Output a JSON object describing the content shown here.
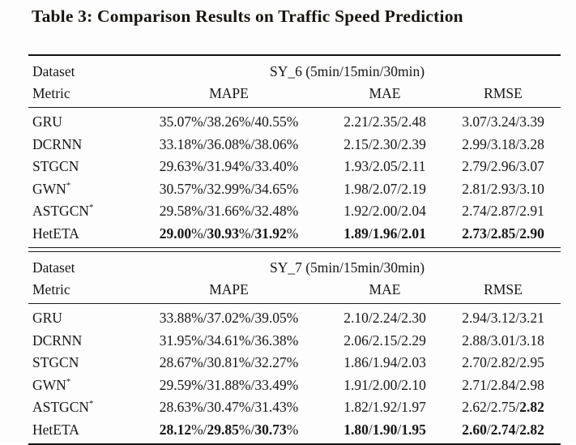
{
  "title": "Table 3: Comparison Results on Traffic Speed Prediction",
  "colors": {
    "ink": "#161616",
    "background": "#fdfdfd",
    "rule": "#121212"
  },
  "table": {
    "blocks": [
      {
        "dataset_label": "Dataset",
        "dataset_value": "SY_6 (5min/15min/30min)",
        "metric_label": "Metric",
        "metric_headers": [
          "MAPE",
          "MAE",
          "RMSE"
        ],
        "rows": [
          {
            "model": "GRU",
            "sup": "",
            "mape": "35.07%/38.26%/40.55%",
            "mae": "2.21/2.35/2.48",
            "rmse": "3.07/3.24/3.39",
            "bold": {}
          },
          {
            "model": "DCRNN",
            "sup": "",
            "mape": "33.18%/36.08%/38.06%",
            "mae": "2.15/2.30/2.39",
            "rmse": "2.99/3.18/3.28",
            "bold": {}
          },
          {
            "model": "STGCN",
            "sup": "",
            "mape": "29.63%/31.94%/33.40%",
            "mae": "1.93/2.05/2.11",
            "rmse": "2.79/2.96/3.07",
            "bold": {}
          },
          {
            "model": "GWN",
            "sup": "*",
            "mape": "30.57%/32.99%/34.65%",
            "mae": "1.98/2.07/2.19",
            "rmse": "2.81/2.93/3.10",
            "bold": {}
          },
          {
            "model": "ASTGCN",
            "sup": "*",
            "mape": "29.58%/31.66%/32.48%",
            "mae": "1.92/2.00/2.04",
            "rmse": "2.74/2.87/2.91",
            "bold": {}
          },
          {
            "model": "HetETA",
            "sup": "",
            "mape": "29.00%/30.93%/31.92%",
            "mae": "1.89/1.96/2.01",
            "rmse": "2.73/2.85/2.90",
            "bold": {
              "mape": [
                1,
                1,
                1
              ],
              "mae": [
                1,
                1,
                1
              ],
              "rmse": [
                1,
                1,
                1
              ]
            }
          }
        ]
      },
      {
        "dataset_label": "Dataset",
        "dataset_value": "SY_7 (5min/15min/30min)",
        "metric_label": "Metric",
        "metric_headers": [
          "MAPE",
          "MAE",
          "RMSE"
        ],
        "rows": [
          {
            "model": "GRU",
            "sup": "",
            "mape": "33.88%/37.02%/39.05%",
            "mae": "2.10/2.24/2.30",
            "rmse": "2.94/3.12/3.21",
            "bold": {}
          },
          {
            "model": "DCRNN",
            "sup": "",
            "mape": "31.95%/34.61%/36.38%",
            "mae": "2.06/2.15/2.29",
            "rmse": "2.88/3.01/3.18",
            "bold": {}
          },
          {
            "model": "STGCN",
            "sup": "",
            "mape": "28.67%/30.81%/32.27%",
            "mae": "1.86/1.94/2.03",
            "rmse": "2.70/2.82/2.95",
            "bold": {}
          },
          {
            "model": "GWN",
            "sup": "*",
            "mape": "29.59%/31.88%/33.49%",
            "mae": "1.91/2.00/2.10",
            "rmse": "2.71/2.84/2.98",
            "bold": {}
          },
          {
            "model": "ASTGCN",
            "sup": "*",
            "mape": "28.63%/30.47%/31.43%",
            "mae": "1.82/1.92/1.97",
            "rmse": "2.62/2.75/2.82",
            "bold": {
              "rmse": [
                0,
                0,
                1
              ]
            }
          },
          {
            "model": "HetETA",
            "sup": "",
            "mape": "28.12%/29.85%/30.73%",
            "mae": "1.80/1.90/1.95",
            "rmse": "2.60/2.74/2.82",
            "bold": {
              "mape": [
                1,
                1,
                1
              ],
              "mae": [
                1,
                1,
                1
              ],
              "rmse": [
                1,
                1,
                1
              ]
            }
          }
        ]
      }
    ]
  }
}
